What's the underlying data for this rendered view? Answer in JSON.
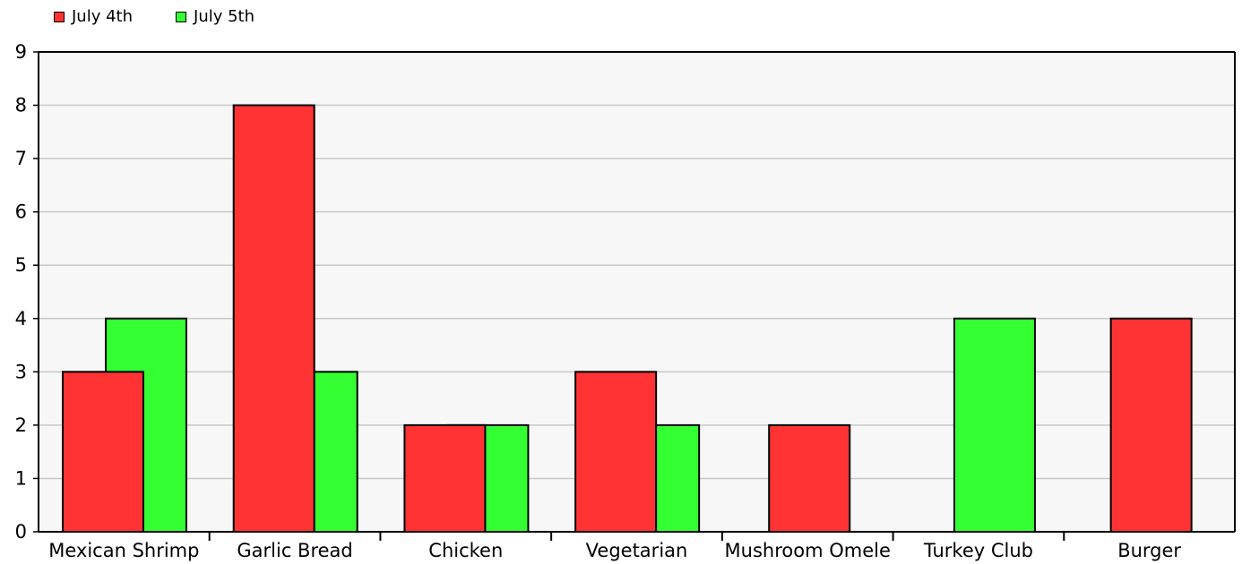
{
  "chart_data": {
    "type": "bar",
    "categories": [
      "Mexican Shrimp",
      "Garlic Bread",
      "Chicken",
      "Vegetarian",
      "Mushroom Omele",
      "Turkey Club",
      "Burger"
    ],
    "series": [
      {
        "name": "July 4th",
        "color": "#ff3333",
        "values": [
          3,
          8,
          2,
          3,
          2,
          null,
          4
        ]
      },
      {
        "name": "July 5th",
        "color": "#33ff33",
        "values": [
          4,
          3,
          2,
          2,
          null,
          4,
          null
        ]
      }
    ],
    "ylim": [
      0,
      9
    ],
    "yticks": [
      "0",
      "1",
      "2",
      "3",
      "4",
      "5",
      "6",
      "7",
      "8",
      "9"
    ],
    "grid": true,
    "legend_position": "top-left",
    "background": "#f7f7f7"
  }
}
